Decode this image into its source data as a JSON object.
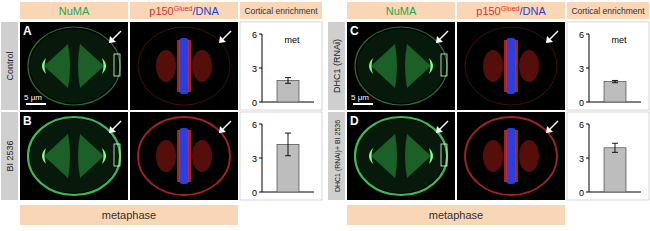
{
  "headers": {
    "numa": "NuMA",
    "p150": "p150",
    "p150_sup": "Glued",
    "dna": "/DNA",
    "enrichment": "Cortical enrichment"
  },
  "stage": "metaphase",
  "panels": [
    {
      "letter": "A",
      "condition": "Control",
      "scale_bar": "5 μm"
    },
    {
      "letter": "B",
      "condition": "BI 2536"
    },
    {
      "letter": "C",
      "condition": "DHC1 (RNAi)",
      "scale_bar": "5 μm"
    },
    {
      "letter": "D",
      "condition": "DHC1 (RNAi)+ BI 2536"
    }
  ],
  "chart_data": [
    {
      "type": "bar",
      "categories": [
        null
      ],
      "values": [
        1.9
      ],
      "errors": [
        0.25
      ],
      "ylim": [
        0,
        6
      ],
      "yticks": [
        0,
        3,
        6
      ],
      "color": "#bdbdbd",
      "annotation": "met"
    },
    {
      "type": "bar",
      "categories": [
        null
      ],
      "values": [
        4.2
      ],
      "errors": [
        1.0
      ],
      "ylim": [
        0,
        6
      ],
      "yticks": [
        0,
        3,
        6
      ],
      "color": "#bdbdbd"
    },
    {
      "type": "bar",
      "categories": [
        null
      ],
      "values": [
        1.8
      ],
      "errors": [
        0.1
      ],
      "ylim": [
        0,
        6
      ],
      "yticks": [
        0,
        3,
        6
      ],
      "color": "#bdbdbd",
      "annotation": "met"
    },
    {
      "type": "bar",
      "categories": [
        null
      ],
      "values": [
        3.9
      ],
      "errors": [
        0.4
      ],
      "ylim": [
        0,
        6
      ],
      "yticks": [
        0,
        3,
        6
      ],
      "color": "#bdbdbd"
    }
  ]
}
